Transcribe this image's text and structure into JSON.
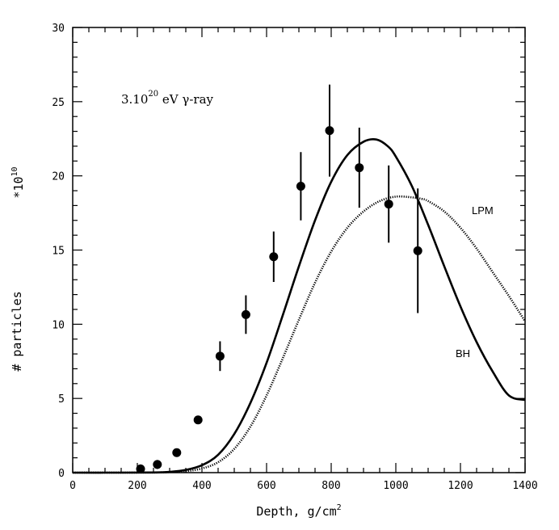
{
  "chart_data": {
    "type": "scatter",
    "title": "",
    "xlabel": "Depth, g/cm",
    "xlabel_sup": "2",
    "ylabel": "# particles",
    "y_multiplier_base": "*10",
    "y_multiplier_exp": "10",
    "annotation_main": "3.10",
    "annotation_exp": "20",
    "annotation_rest": " eV γ-ray",
    "xlim": [
      0,
      1400
    ],
    "ylim": [
      0,
      30
    ],
    "xticks": [
      0,
      200,
      400,
      600,
      800,
      1000,
      1200,
      1400
    ],
    "yticks": [
      0,
      5,
      10,
      15,
      20,
      25,
      30
    ],
    "series": [
      {
        "name": "data",
        "kind": "points",
        "points": [
          {
            "x": 210,
            "y": 0.25,
            "err": 0.3
          },
          {
            "x": 262,
            "y": 0.55,
            "err": 0.3
          },
          {
            "x": 322,
            "y": 1.35,
            "err": 0.2
          },
          {
            "x": 388,
            "y": 3.55,
            "err": 0.25
          },
          {
            "x": 456,
            "y": 7.85,
            "err": 1.0
          },
          {
            "x": 536,
            "y": 10.65,
            "err": 1.3
          },
          {
            "x": 622,
            "y": 14.55,
            "err": 1.7
          },
          {
            "x": 706,
            "y": 19.3,
            "err": 2.3
          },
          {
            "x": 795,
            "y": 23.05,
            "err": 3.1
          },
          {
            "x": 887,
            "y": 20.55,
            "err": 2.7
          },
          {
            "x": 978,
            "y": 18.1,
            "err": 2.6
          },
          {
            "x": 1068,
            "y": 14.95,
            "err": 4.2
          }
        ]
      },
      {
        "name": "BH",
        "kind": "solid",
        "points": [
          [
            0,
            0
          ],
          [
            150,
            0
          ],
          [
            250,
            0.01
          ],
          [
            300,
            0.05
          ],
          [
            350,
            0.18
          ],
          [
            400,
            0.5
          ],
          [
            450,
            1.2
          ],
          [
            500,
            2.6
          ],
          [
            550,
            4.7
          ],
          [
            600,
            7.4
          ],
          [
            650,
            10.6
          ],
          [
            700,
            13.9
          ],
          [
            750,
            17.0
          ],
          [
            800,
            19.6
          ],
          [
            850,
            21.4
          ],
          [
            900,
            22.3
          ],
          [
            940,
            22.45
          ],
          [
            975,
            22.0
          ],
          [
            1000,
            21.3
          ],
          [
            1050,
            19.3
          ],
          [
            1100,
            16.7
          ],
          [
            1150,
            13.9
          ],
          [
            1200,
            11.2
          ],
          [
            1250,
            8.8
          ],
          [
            1300,
            6.8
          ],
          [
            1350,
            5.2
          ],
          [
            1400,
            4.9
          ]
        ]
      },
      {
        "name": "LPM",
        "kind": "dotted",
        "points": [
          [
            0,
            0
          ],
          [
            250,
            0.01
          ],
          [
            300,
            0.04
          ],
          [
            350,
            0.1
          ],
          [
            400,
            0.28
          ],
          [
            450,
            0.7
          ],
          [
            500,
            1.6
          ],
          [
            550,
            3.1
          ],
          [
            600,
            5.2
          ],
          [
            650,
            7.7
          ],
          [
            700,
            10.3
          ],
          [
            750,
            12.8
          ],
          [
            800,
            14.9
          ],
          [
            850,
            16.5
          ],
          [
            900,
            17.6
          ],
          [
            950,
            18.3
          ],
          [
            1000,
            18.6
          ],
          [
            1050,
            18.55
          ],
          [
            1080,
            18.45
          ],
          [
            1100,
            18.3
          ],
          [
            1150,
            17.6
          ],
          [
            1200,
            16.5
          ],
          [
            1250,
            15.1
          ],
          [
            1300,
            13.5
          ],
          [
            1350,
            11.9
          ],
          [
            1400,
            10.2
          ]
        ]
      }
    ],
    "curve_labels": {
      "lpm": "LPM",
      "bh": "BH"
    }
  }
}
